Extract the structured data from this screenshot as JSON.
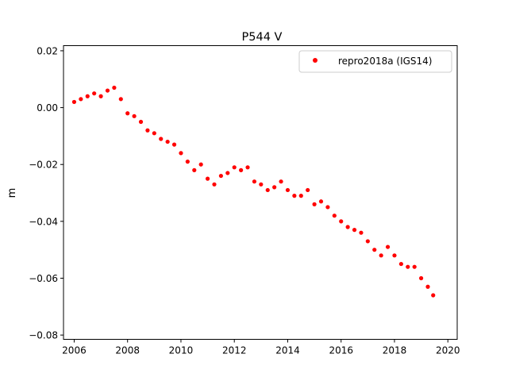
{
  "chart_data": {
    "type": "scatter",
    "title": "P544 V",
    "xlabel": "",
    "ylabel": "m",
    "xlim": [
      2005.6,
      2020.35
    ],
    "ylim": [
      -0.0815,
      0.0218
    ],
    "x_ticks": [
      2006,
      2008,
      2010,
      2012,
      2014,
      2016,
      2018,
      2020
    ],
    "x_tick_labels": [
      "2006",
      "2008",
      "2010",
      "2012",
      "2014",
      "2016",
      "2018",
      "2020"
    ],
    "y_ticks": [
      0.02,
      0.0,
      -0.02,
      -0.04,
      -0.06,
      -0.08
    ],
    "y_tick_labels": [
      "0.02",
      "0.00",
      "−0.02",
      "−0.04",
      "−0.06",
      "−0.08"
    ],
    "grid": false,
    "legend_position": "top-right",
    "series": [
      {
        "name": "repro2018a (IGS14)",
        "color": "#ff0000",
        "marker": "circle",
        "x": [
          2006.0,
          2006.25,
          2006.5,
          2006.75,
          2007.0,
          2007.25,
          2007.5,
          2007.75,
          2008.0,
          2008.25,
          2008.5,
          2008.75,
          2009.0,
          2009.25,
          2009.5,
          2009.75,
          2010.0,
          2010.25,
          2010.5,
          2010.75,
          2011.0,
          2011.25,
          2011.5,
          2011.75,
          2012.0,
          2012.25,
          2012.5,
          2012.75,
          2013.0,
          2013.25,
          2013.5,
          2013.75,
          2014.0,
          2014.25,
          2014.5,
          2014.75,
          2015.0,
          2015.25,
          2015.5,
          2015.75,
          2016.0,
          2016.25,
          2016.5,
          2016.75,
          2017.0,
          2017.25,
          2017.5,
          2017.75,
          2018.0,
          2018.25,
          2018.5,
          2018.75,
          2019.0,
          2019.25,
          2019.45
        ],
        "y": [
          0.002,
          0.003,
          0.004,
          0.005,
          0.004,
          0.006,
          0.007,
          0.003,
          -0.002,
          -0.003,
          -0.005,
          -0.008,
          -0.009,
          -0.011,
          -0.012,
          -0.013,
          -0.016,
          -0.019,
          -0.022,
          -0.02,
          -0.025,
          -0.027,
          -0.024,
          -0.023,
          -0.021,
          -0.022,
          -0.021,
          -0.026,
          -0.027,
          -0.029,
          -0.028,
          -0.026,
          -0.029,
          -0.031,
          -0.031,
          -0.029,
          -0.034,
          -0.033,
          -0.035,
          -0.038,
          -0.04,
          -0.042,
          -0.043,
          -0.044,
          -0.047,
          -0.05,
          -0.052,
          -0.049,
          -0.052,
          -0.055,
          -0.056,
          -0.056,
          -0.06,
          -0.063,
          -0.066
        ]
      }
    ]
  }
}
